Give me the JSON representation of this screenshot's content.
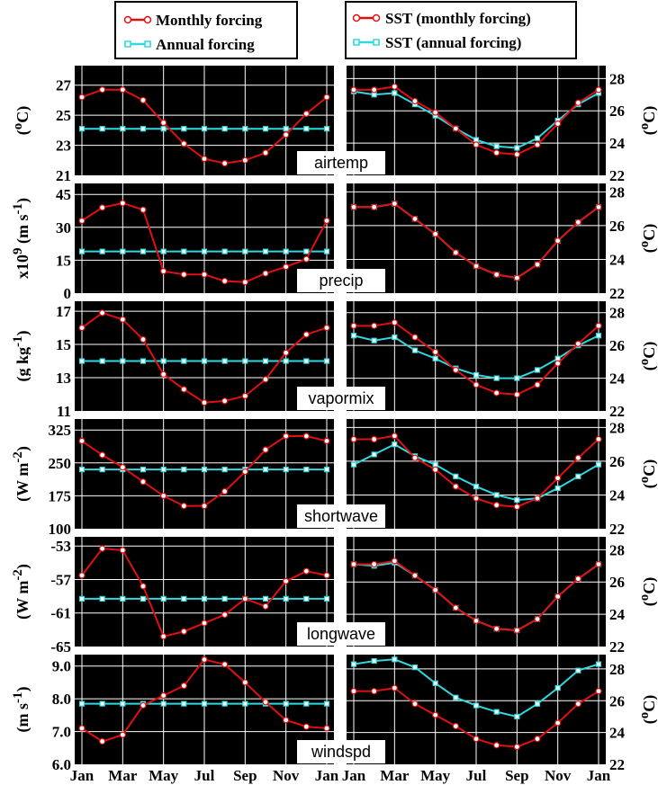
{
  "legend": {
    "left": [
      "Monthly forcing",
      "Annual forcing"
    ],
    "right": [
      "SST (monthly forcing)",
      "SST (annual forcing)"
    ]
  },
  "colors": {
    "monthly": "#e01010",
    "annual": "#30d8e0",
    "panel_bg": "#000000",
    "grid": "#ffffff"
  },
  "x_ticks": [
    "Jan",
    "Mar",
    "May",
    "Jul",
    "Sep",
    "Nov",
    "Jan"
  ],
  "chart_data": [
    {
      "type": "line",
      "tag": "airtemp",
      "ylabel": "(<sup>o</sup>C)",
      "ylim": [
        21,
        28.3
      ],
      "yticks": [
        "27",
        "25",
        "23",
        "21"
      ],
      "x": [
        1,
        2,
        3,
        4,
        5,
        6,
        7,
        8,
        9,
        10,
        11,
        12,
        13
      ],
      "series": [
        {
          "name": "Monthly forcing",
          "values": [
            26.2,
            26.7,
            26.7,
            26.0,
            24.5,
            23.1,
            22.1,
            21.8,
            22.0,
            22.5,
            23.7,
            25.1,
            26.2
          ]
        },
        {
          "name": "Annual forcing",
          "values": [
            24.1,
            24.1,
            24.1,
            24.1,
            24.1,
            24.1,
            24.1,
            24.1,
            24.1,
            24.1,
            24.1,
            24.1,
            24.1
          ]
        }
      ],
      "sst_ylabel": "(<sup>o</sup>C)",
      "sst_ylim": [
        22,
        28.8
      ],
      "sst_yticks": [
        "28",
        "26",
        "24",
        "22"
      ],
      "sst_series": [
        {
          "name": "SST (monthly forcing)",
          "values": [
            27.3,
            27.3,
            27.5,
            26.6,
            25.9,
            24.9,
            23.9,
            23.4,
            23.3,
            23.9,
            25.2,
            26.5,
            27.3
          ]
        },
        {
          "name": "SST (annual forcing)",
          "values": [
            27.2,
            27.0,
            27.1,
            26.4,
            25.7,
            24.9,
            24.2,
            23.8,
            23.7,
            24.3,
            25.4,
            26.4,
            27.1
          ]
        }
      ]
    },
    {
      "type": "line",
      "tag": "precip",
      "ylabel": "x10<sup>9</sup> (m s<sup>-1</sup>)",
      "ylim": [
        0,
        50
      ],
      "yticks": [
        "45",
        "30",
        "15",
        "0"
      ],
      "x": [
        1,
        2,
        3,
        4,
        5,
        6,
        7,
        8,
        9,
        10,
        11,
        12,
        13
      ],
      "series": [
        {
          "name": "Monthly forcing",
          "values": [
            33,
            39,
            41,
            38,
            10,
            8.5,
            8.5,
            5.5,
            5,
            9,
            12,
            15.5,
            33
          ]
        },
        {
          "name": "Annual forcing",
          "values": [
            19,
            19,
            19,
            19,
            19,
            19,
            19,
            19,
            19,
            19,
            19,
            19,
            19
          ]
        }
      ],
      "sst_ylabel": "(<sup>o</sup>C)",
      "sst_ylim": [
        22,
        28.5
      ],
      "sst_yticks": [
        "28",
        "26",
        "24",
        "22"
      ],
      "sst_series": [
        {
          "name": "SST (monthly forcing)",
          "values": [
            27.1,
            27.1,
            27.3,
            26.4,
            25.5,
            24.4,
            23.6,
            23.1,
            22.9,
            23.7,
            25.1,
            26.2,
            27.1
          ]
        },
        {
          "name": "SST (annual forcing)",
          "values": [
            27.1,
            27.1,
            27.3,
            26.4,
            25.5,
            24.4,
            23.6,
            23.1,
            22.9,
            23.7,
            25.1,
            26.2,
            27.1
          ]
        }
      ]
    },
    {
      "type": "line",
      "tag": "vapormix",
      "ylabel": "(g kg<sup>-1</sup>)",
      "ylim": [
        11,
        17.6
      ],
      "yticks": [
        "17",
        "15",
        "13",
        "11"
      ],
      "x": [
        1,
        2,
        3,
        4,
        5,
        6,
        7,
        8,
        9,
        10,
        11,
        12,
        13
      ],
      "series": [
        {
          "name": "Monthly forcing",
          "values": [
            16.0,
            16.9,
            16.5,
            15.3,
            13.2,
            12.3,
            11.5,
            11.6,
            11.9,
            12.9,
            14.5,
            15.6,
            16.0
          ]
        },
        {
          "name": "Annual forcing",
          "values": [
            14.0,
            14.0,
            14.0,
            14.0,
            14.0,
            14.0,
            14.0,
            14.0,
            14.0,
            14.0,
            14.0,
            14.0,
            14.0
          ]
        }
      ],
      "sst_ylabel": "(<sup>o</sup>C)",
      "sst_ylim": [
        22,
        28.7
      ],
      "sst_yticks": [
        "28",
        "26",
        "24",
        "22"
      ],
      "sst_series": [
        {
          "name": "SST (monthly forcing)",
          "values": [
            27.2,
            27.2,
            27.4,
            26.5,
            25.6,
            24.5,
            23.6,
            23.1,
            23.0,
            23.6,
            24.9,
            26.1,
            27.2
          ]
        },
        {
          "name": "SST (annual forcing)",
          "values": [
            26.6,
            26.3,
            26.5,
            25.7,
            25.2,
            24.6,
            24.2,
            24.0,
            24.0,
            24.5,
            25.2,
            26.0,
            26.6
          ]
        }
      ]
    },
    {
      "type": "line",
      "tag": "shortwave",
      "ylabel": "(W m<sup>-2</sup>)",
      "ylim": [
        100,
        350
      ],
      "yticks": [
        "325",
        "250",
        "175",
        "100"
      ],
      "x": [
        1,
        2,
        3,
        4,
        5,
        6,
        7,
        8,
        9,
        10,
        11,
        12,
        13
      ],
      "series": [
        {
          "name": "Monthly forcing",
          "values": [
            300,
            268,
            240,
            207,
            175,
            152,
            152,
            185,
            230,
            280,
            311,
            311,
            300
          ]
        },
        {
          "name": "Annual forcing",
          "values": [
            235,
            235,
            235,
            235,
            235,
            235,
            235,
            235,
            235,
            235,
            235,
            235,
            235
          ]
        }
      ],
      "sst_ylabel": "(<sup>o</sup>C)",
      "sst_ylim": [
        22,
        28.5
      ],
      "sst_yticks": [
        "28",
        "26",
        "24",
        "22"
      ],
      "sst_series": [
        {
          "name": "SST (monthly forcing)",
          "values": [
            27.3,
            27.3,
            27.5,
            26.2,
            25.5,
            24.5,
            23.8,
            23.4,
            23.3,
            23.8,
            25.0,
            26.2,
            27.3
          ]
        },
        {
          "name": "SST (annual forcing)",
          "values": [
            25.8,
            26.4,
            27.0,
            26.3,
            25.8,
            25.1,
            24.5,
            24.0,
            23.7,
            23.8,
            24.4,
            25.1,
            25.8
          ]
        }
      ]
    },
    {
      "type": "line",
      "tag": "longwave",
      "ylabel": "(W m<sup>-2</sup>)",
      "ylim": [
        -65,
        -51.9
      ],
      "yticks": [
        "-53",
        "-57",
        "-61",
        "-65"
      ],
      "x": [
        1,
        2,
        3,
        4,
        5,
        6,
        7,
        8,
        9,
        10,
        11,
        12,
        13
      ],
      "series": [
        {
          "name": "Monthly forcing",
          "values": [
            -56.5,
            -53.3,
            -53.5,
            -57.8,
            -63.8,
            -63.2,
            -62.2,
            -61.2,
            -59.3,
            -60.2,
            -57.2,
            -56.0,
            -56.5
          ]
        },
        {
          "name": "Annual forcing",
          "values": [
            -59.3,
            -59.3,
            -59.3,
            -59.3,
            -59.3,
            -59.3,
            -59.3,
            -59.3,
            -59.3,
            -59.3,
            -59.3,
            -59.3,
            -59.3
          ]
        }
      ],
      "sst_ylabel": "(<sup>o</sup>C)",
      "sst_ylim": [
        22,
        28.8
      ],
      "sst_yticks": [
        "28",
        "26",
        "24",
        "22"
      ],
      "sst_series": [
        {
          "name": "SST (monthly forcing)",
          "values": [
            27.1,
            27.1,
            27.3,
            26.4,
            25.5,
            24.4,
            23.6,
            23.1,
            23.0,
            23.7,
            25.1,
            26.2,
            27.1
          ]
        },
        {
          "name": "SST (annual forcing)",
          "values": [
            27.1,
            27.0,
            27.2,
            26.4,
            25.5,
            24.4,
            23.6,
            23.1,
            23.0,
            23.7,
            25.1,
            26.2,
            27.1
          ]
        }
      ]
    },
    {
      "type": "line",
      "tag": "windspd",
      "ylabel": "(m s<sup>-1</sup>)",
      "ylim": [
        6.0,
        9.35
      ],
      "yticks": [
        "9.0",
        "8.0",
        "7.0",
        "6.0"
      ],
      "x": [
        1,
        2,
        3,
        4,
        5,
        6,
        7,
        8,
        9,
        10,
        11,
        12,
        13
      ],
      "series": [
        {
          "name": "Monthly forcing",
          "values": [
            7.1,
            6.7,
            6.9,
            7.8,
            8.1,
            8.4,
            9.2,
            9.05,
            8.5,
            7.9,
            7.35,
            7.15,
            7.1
          ]
        },
        {
          "name": "Annual forcing",
          "values": [
            7.85,
            7.85,
            7.85,
            7.85,
            7.85,
            7.85,
            7.85,
            7.85,
            7.85,
            7.85,
            7.85,
            7.85,
            7.85
          ]
        }
      ],
      "sst_ylabel": "(<sup>o</sup>C)",
      "sst_ylim": [
        22,
        28.9
      ],
      "sst_yticks": [
        "28",
        "26",
        "24",
        "22"
      ],
      "sst_series": [
        {
          "name": "SST (monthly forcing)",
          "values": [
            26.6,
            26.6,
            26.8,
            25.8,
            25.1,
            24.4,
            23.6,
            23.2,
            23.1,
            23.6,
            24.6,
            25.8,
            26.6
          ]
        },
        {
          "name": "SST (annual forcing)",
          "values": [
            28.3,
            28.5,
            28.6,
            28.1,
            27.1,
            26.2,
            25.7,
            25.3,
            25.0,
            25.8,
            26.8,
            27.9,
            28.3
          ]
        }
      ]
    }
  ]
}
